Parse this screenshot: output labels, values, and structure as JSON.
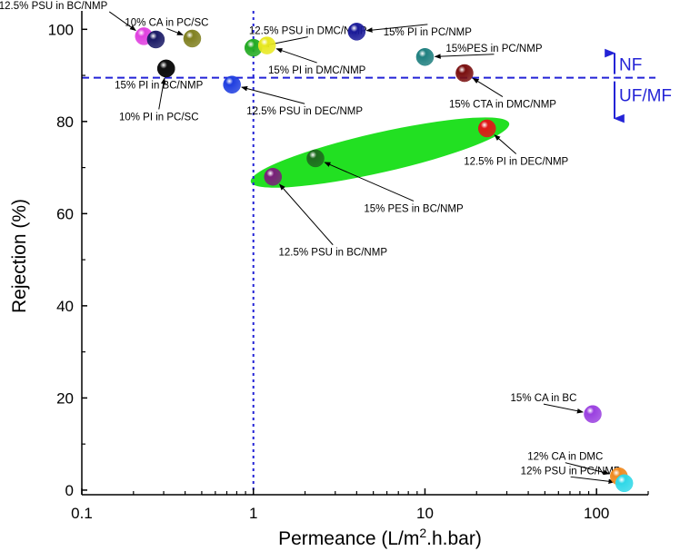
{
  "chart_data": {
    "type": "scatter",
    "xlabel": "Permeance (L/m",
    "xlabel_sup": "2",
    "xlabel_tail": ".h.bar)",
    "ylabel": "Rejection (%)",
    "xscale": "log",
    "xlim": [
      0.1,
      200
    ],
    "ylim": [
      -1,
      104
    ],
    "x_ticks": [
      0.1,
      1,
      10,
      100
    ],
    "x_tick_labels": [
      "0.1",
      "1",
      "10",
      "100"
    ],
    "y_ticks": [
      0,
      20,
      40,
      60,
      80,
      100
    ],
    "y_tick_labels": [
      "0",
      "20",
      "40",
      "60",
      "80",
      "100"
    ],
    "threshold_lines": {
      "x": 1,
      "y": 89.5,
      "color": "#2323d6"
    },
    "region_labels": [
      {
        "text": "NF",
        "side": "above"
      },
      {
        "text": "UF/MF",
        "side": "below"
      }
    ],
    "points": [
      {
        "label": "12.5% PSU in BC/NMP",
        "x": 0.23,
        "y": 98.5,
        "color": "#e040e0"
      },
      {
        "label": "",
        "x": 0.27,
        "y": 97.8,
        "color": "#1a1a66"
      },
      {
        "label": "10% CA in PC/SC",
        "x": 0.44,
        "y": 98.0,
        "color": "#808020"
      },
      {
        "label": "15% PI in BC/NMP",
        "x": 0.31,
        "y": 91.5,
        "color": "#111111"
      },
      {
        "label": "10% PI in PC/SC",
        "x": 0.31,
        "y": 91.5,
        "color": "#111111"
      },
      {
        "label": "12.5% PSU in DMC/NMP",
        "x": 1.0,
        "y": 96.0,
        "color": "#22aa22"
      },
      {
        "label": "15% PI in DMC/NMP",
        "x": 1.2,
        "y": 96.5,
        "color": "#e8e820"
      },
      {
        "label": "15% PI in PC/NMP",
        "x": 4.0,
        "y": 99.5,
        "color": "#1a1a99"
      },
      {
        "label": "15%PES in PC/NMP",
        "x": 10,
        "y": 94.0,
        "color": "#208080"
      },
      {
        "label": "15% CTA in DMC/NMP",
        "x": 17,
        "y": 90.5,
        "color": "#7a1010"
      },
      {
        "label": "12.5% PSU in DEC/NMP",
        "x": 0.75,
        "y": 88.0,
        "color": "#1f3ee0"
      },
      {
        "label": "12.5% PI in DEC/NMP",
        "x": 23,
        "y": 78.5,
        "color": "#e01818"
      },
      {
        "label": "15% PES in BC/NMP",
        "x": 2.3,
        "y": 72.0,
        "color": "#1f6a1f"
      },
      {
        "label": "12.5% PSU in BC/NMP",
        "x": 1.3,
        "y": 68.0,
        "color": "#7a207a"
      },
      {
        "label": "15% CA in BC",
        "x": 95,
        "y": 16.5,
        "color": "#9a40e0"
      },
      {
        "label": "12% CA in DMC",
        "x": 135,
        "y": 3.0,
        "color": "#f08a20"
      },
      {
        "label": "12% PSU in PC/NMP",
        "x": 145,
        "y": 1.5,
        "color": "#30d8e8"
      }
    ],
    "annotations": [
      {
        "point": 0,
        "text": "12.5% PSU in BC/NMP"
      },
      {
        "point": 2,
        "text": "10% CA in PC/SC"
      },
      {
        "point": 3,
        "text": "15% PI in BC/NMP"
      },
      {
        "point": 4,
        "text": "10% PI in PC/SC"
      },
      {
        "point": 5,
        "text": "12.5% PSU in DMC/NMP"
      },
      {
        "point": 6,
        "text": "15% PI in DMC/NMP"
      },
      {
        "point": 7,
        "text": "15% PI in PC/NMP"
      },
      {
        "point": 8,
        "text": "15%PES in PC/NMP"
      },
      {
        "point": 9,
        "text": "15% CTA in DMC/NMP"
      },
      {
        "point": 10,
        "text": "12.5% PSU in DEC/NMP"
      },
      {
        "point": 11,
        "text": "12.5% PI in DEC/NMP"
      },
      {
        "point": 12,
        "text": "15% PES in BC/NMP"
      },
      {
        "point": 13,
        "text": "12.5% PSU in BC/NMP"
      },
      {
        "point": 14,
        "text": "15% CA in BC"
      },
      {
        "point": 15,
        "text": "12% CA in DMC"
      },
      {
        "point": 16,
        "text": "12% PSU in PC/NMP"
      }
    ],
    "highlight_ellipse": {
      "color": "#22e022",
      "points": [
        11,
        12,
        13
      ]
    },
    "grid": false,
    "legend": "none"
  }
}
